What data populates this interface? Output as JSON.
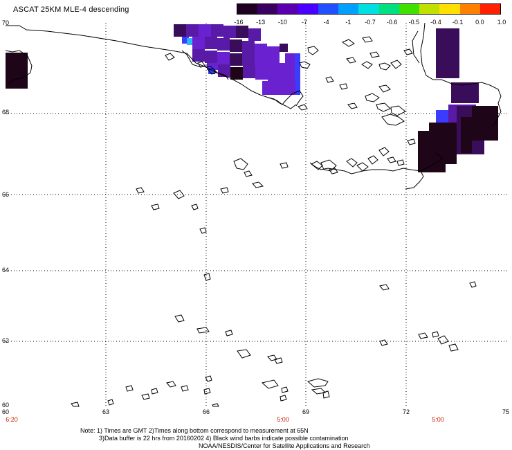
{
  "title": "ASCAT 25KM MLE-4 descending",
  "colorbar": {
    "labels": [
      "-16",
      "-13",
      "-10",
      "-7",
      "-4",
      "-1",
      "-0.7",
      "-0.6",
      "-0.5",
      "-0.4",
      "-0.1",
      "0.0",
      "1.0"
    ],
    "colors": [
      "#200020",
      "#3a0060",
      "#5a00b0",
      "#4a00ff",
      "#2050ff",
      "#00a0ff",
      "#00e0e0",
      "#00e080",
      "#40e000",
      "#c0e000",
      "#ffe000",
      "#ff8000",
      "#ff2000"
    ]
  },
  "axes": {
    "lat_labels": [
      "70",
      "68",
      "66",
      "64",
      "62",
      "60"
    ],
    "lon_labels": [
      "60",
      "63",
      "66",
      "69",
      "72",
      "75"
    ],
    "time_labels": [
      "6:20",
      "5:00",
      "5:00"
    ]
  },
  "notes": {
    "line1": "Note: 1) Times are GMT 2)Times along bottom correspond to measurement at 65N",
    "line2": "3)Data buffer is 22 hrs from 20160202 4) Black wind barbs indicate possible contamination",
    "line3": "NOAA/NESDIS/Center for Satellite Applications and Research"
  },
  "colors": {
    "dark": "#1e0618",
    "deep_purple": "#3a0d5a",
    "purple": "#5a1aa8",
    "violet": "#6a22d0",
    "blue": "#3a3cff",
    "cyan": "#29b6ff",
    "time_red": "#cc2200"
  }
}
